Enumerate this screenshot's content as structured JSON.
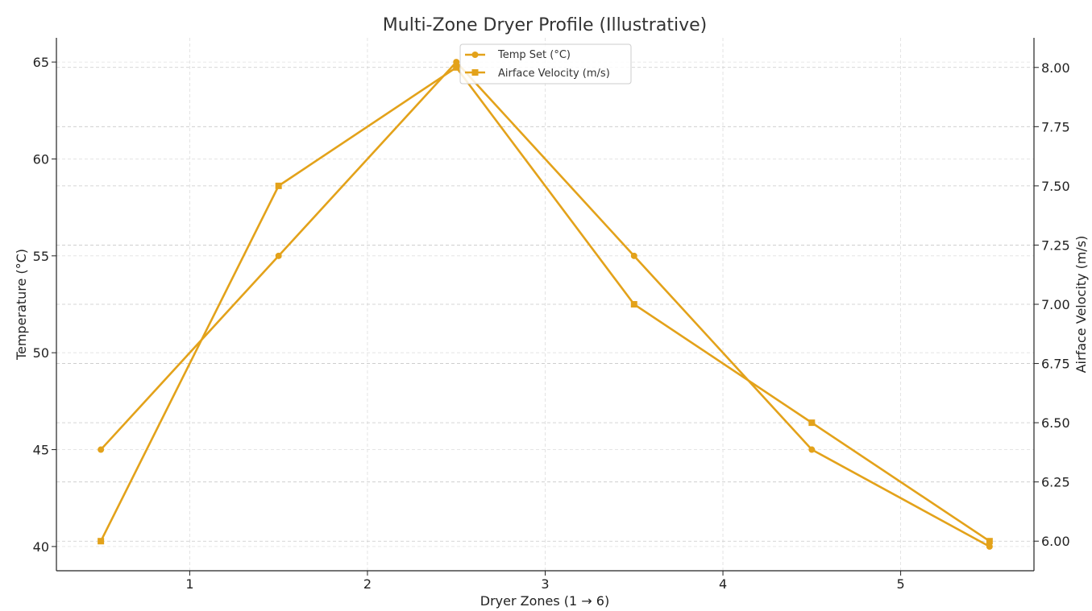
{
  "chart_data": {
    "type": "line",
    "title": "Multi-Zone Dryer Profile (Illustrative)",
    "xlabel": "Dryer Zones (1 → 6)",
    "ylabel_left": "Temperature (°C)",
    "ylabel_right": "Airface Velocity (m/s)",
    "x": [
      0.5,
      1.5,
      2.5,
      3.5,
      4.5,
      5.5
    ],
    "xlim": [
      0.25,
      5.75
    ],
    "x_ticks": [
      1,
      2,
      3,
      4,
      5
    ],
    "x_tick_labels": [
      "1",
      "2",
      "3",
      "4",
      "5"
    ],
    "ylim_left": [
      38.75,
      66.25
    ],
    "y_ticks_left": [
      40,
      45,
      50,
      55,
      60,
      65
    ],
    "y_tick_labels_left": [
      "40",
      "45",
      "50",
      "55",
      "60",
      "65"
    ],
    "ylim_right": [
      5.875,
      8.125
    ],
    "y_ticks_right": [
      6.0,
      6.25,
      6.5,
      6.75,
      7.0,
      7.25,
      7.5,
      7.75,
      8.0
    ],
    "y_tick_labels_right": [
      "6.00",
      "6.25",
      "6.50",
      "6.75",
      "7.00",
      "7.25",
      "7.50",
      "7.75",
      "8.00"
    ],
    "grid": true,
    "legend_position": "top-center",
    "series": [
      {
        "name": "Temp Set (°C)",
        "axis": "left",
        "marker": "circle",
        "color": "#E3A21A",
        "values": [
          45,
          55,
          65,
          55,
          45,
          40
        ]
      },
      {
        "name": "Airface Velocity (m/s)",
        "axis": "right",
        "marker": "square",
        "color": "#E3A21A",
        "values": [
          6.0,
          7.5,
          8.0,
          7.0,
          6.5,
          6.0
        ]
      }
    ]
  }
}
